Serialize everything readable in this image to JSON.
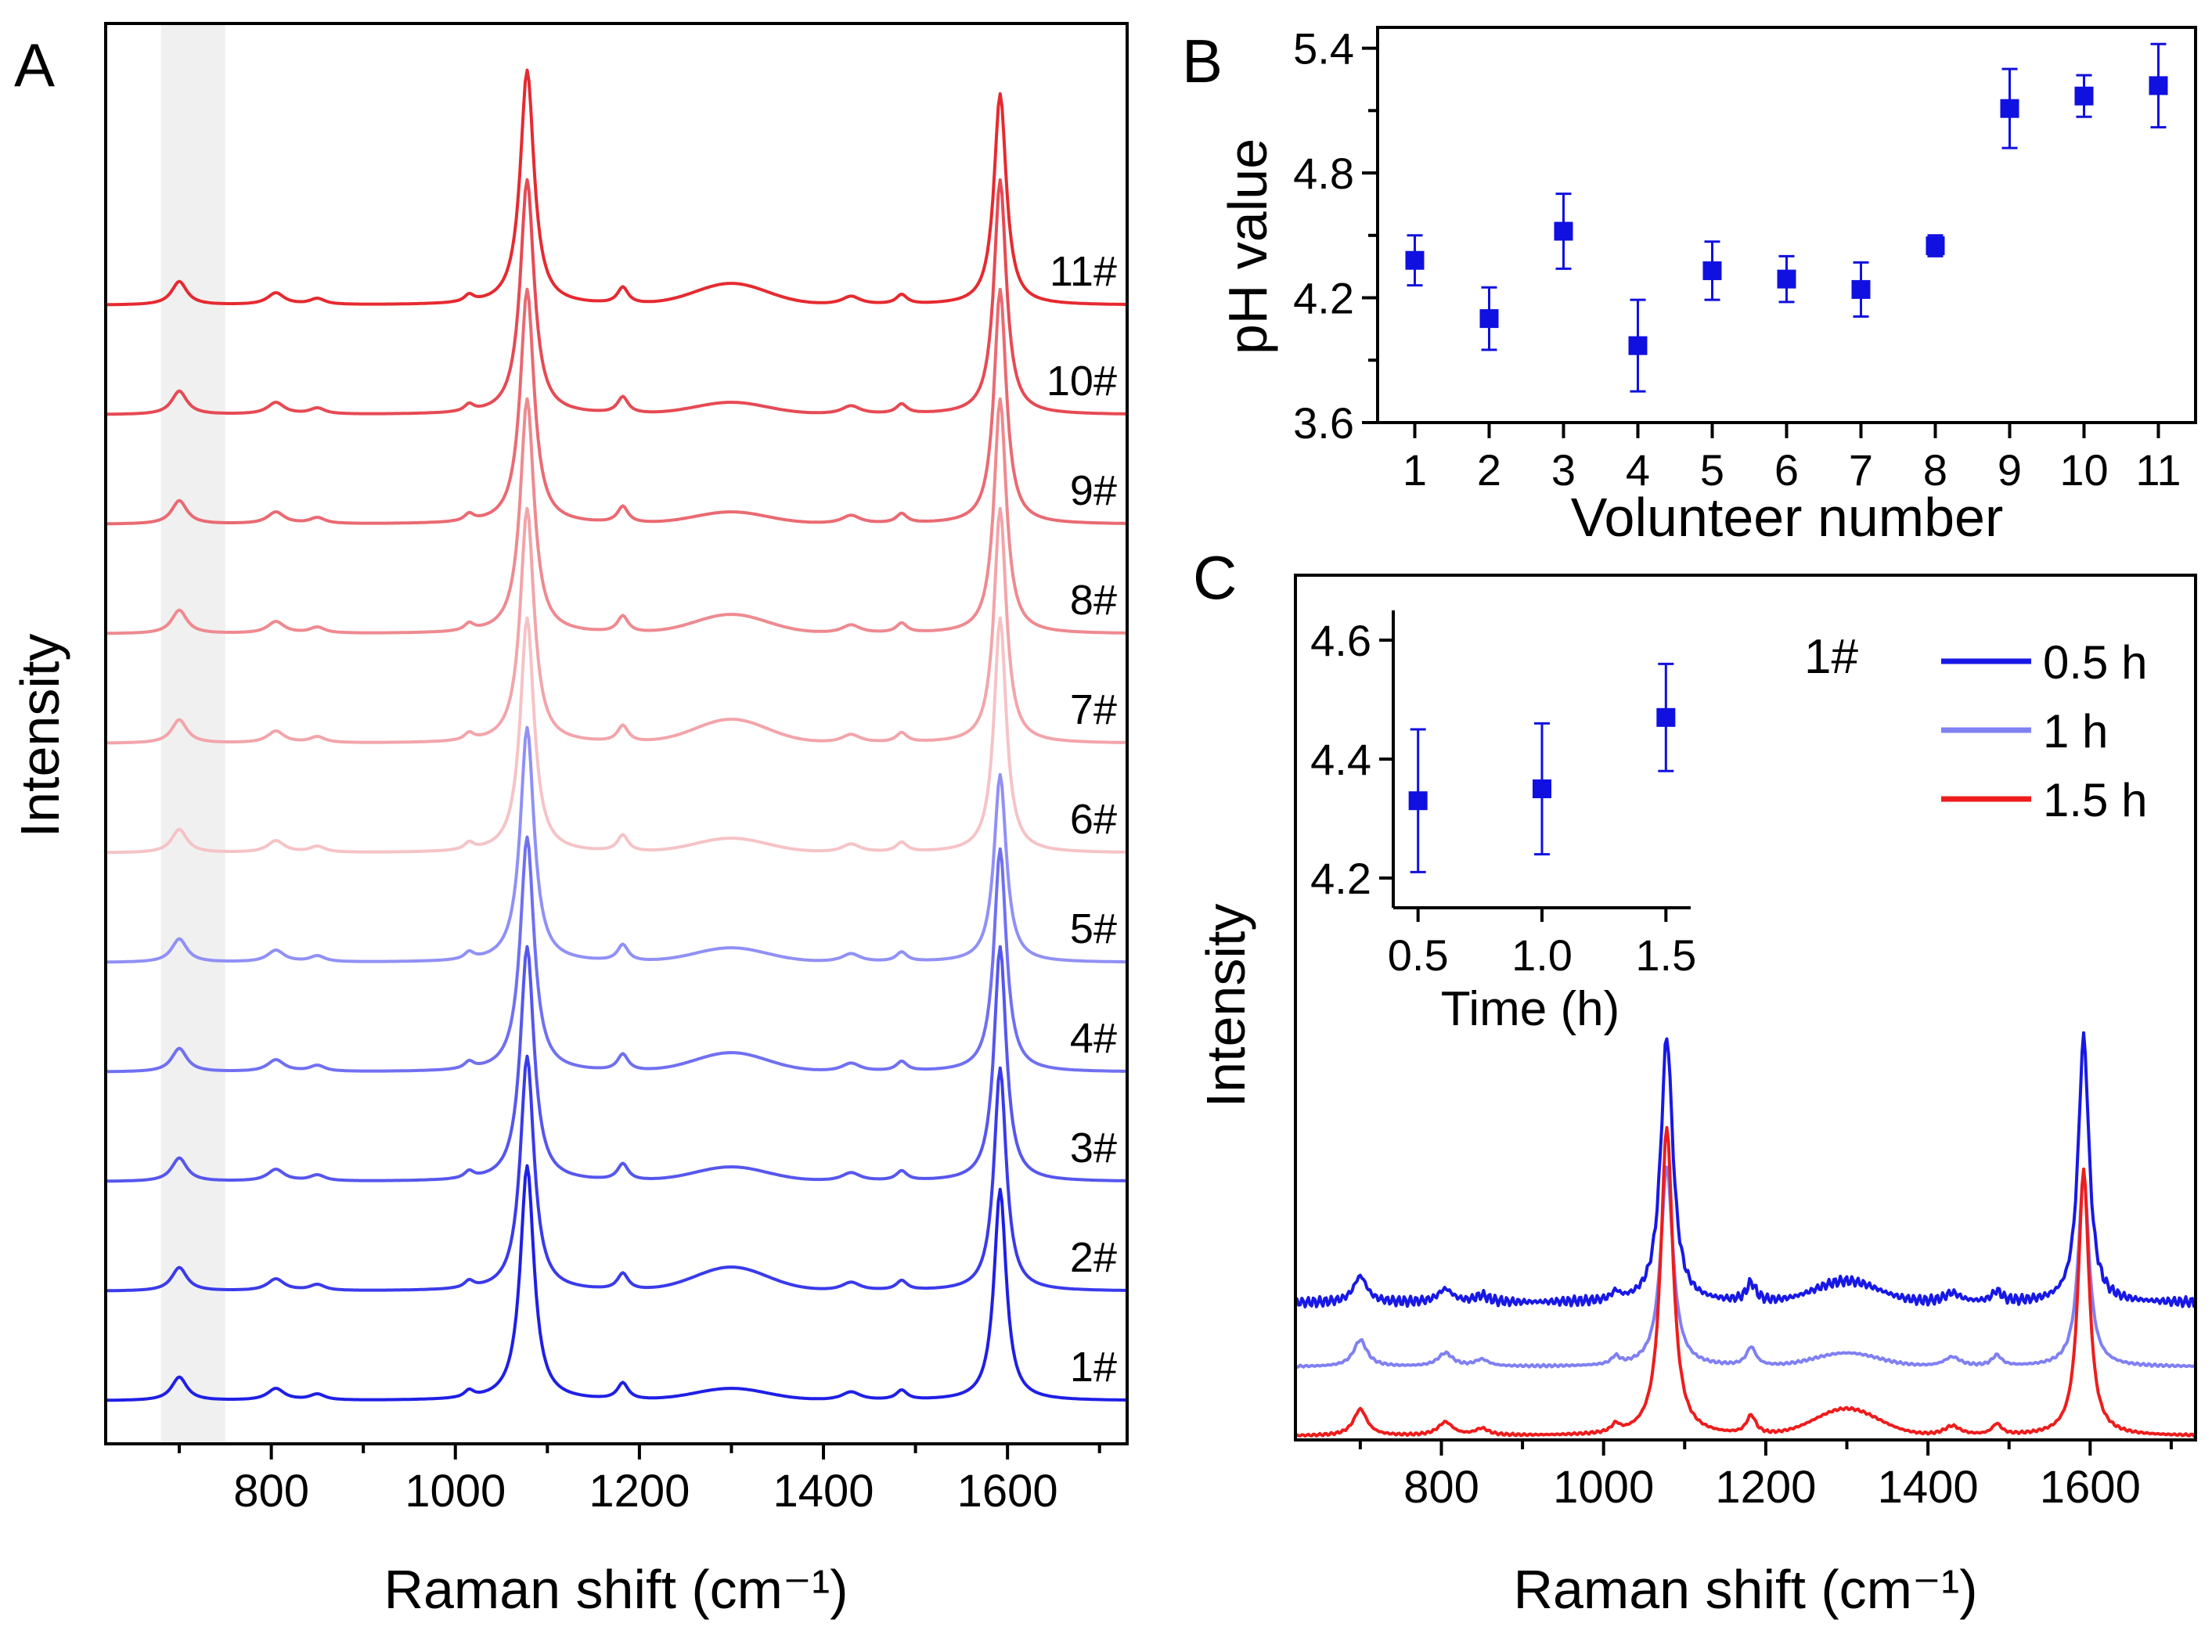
{
  "chart_data": [
    {
      "panel": "A",
      "type": "line",
      "title": "",
      "xlabel": "Raman shift (cm⁻¹)",
      "ylabel": "Intensity",
      "xlim": [
        620,
        1730
      ],
      "xticks": [
        800,
        1000,
        1200,
        1400,
        1600
      ],
      "shaded_band": [
        680,
        750
      ],
      "shaded_color": "#f0f0f0",
      "series": [
        {
          "name": "1#",
          "label": "1#",
          "color": "#1f1fe6",
          "baseline": 0.0,
          "peak_1080": 1.0,
          "peak_1590": 0.9,
          "band_1300": 0.05
        },
        {
          "name": "2#",
          "label": "2#",
          "color": "#3a3aeb",
          "baseline": 0.78,
          "peak_1080": 1.0,
          "peak_1590": 0.95,
          "band_1300": 0.1
        },
        {
          "name": "3#",
          "label": "3#",
          "color": "#5656ee",
          "baseline": 1.56,
          "peak_1080": 1.0,
          "peak_1590": 1.0,
          "band_1300": 0.06
        },
        {
          "name": "4#",
          "label": "4#",
          "color": "#7070f2",
          "baseline": 2.34,
          "peak_1080": 1.0,
          "peak_1590": 0.95,
          "band_1300": 0.08
        },
        {
          "name": "5#",
          "label": "5#",
          "color": "#9090f6",
          "baseline": 3.12,
          "peak_1080": 1.0,
          "peak_1590": 0.8,
          "band_1300": 0.06
        },
        {
          "name": "6#",
          "label": "6#",
          "color": "#f5c3c6",
          "baseline": 3.9,
          "peak_1080": 1.0,
          "peak_1590": 1.0,
          "band_1300": 0.06
        },
        {
          "name": "7#",
          "label": "7#",
          "color": "#f2a5aa",
          "baseline": 4.68,
          "peak_1080": 1.0,
          "peak_1590": 1.0,
          "band_1300": 0.1
        },
        {
          "name": "8#",
          "label": "8#",
          "color": "#ee8a90",
          "baseline": 5.46,
          "peak_1080": 1.0,
          "peak_1590": 1.0,
          "band_1300": 0.08
        },
        {
          "name": "9#",
          "label": "9#",
          "color": "#ea6a72",
          "baseline": 6.24,
          "peak_1080": 1.0,
          "peak_1590": 1.0,
          "band_1300": 0.05
        },
        {
          "name": "10#",
          "label": "10#",
          "color": "#e64a54",
          "baseline": 7.02,
          "peak_1080": 1.0,
          "peak_1590": 1.0,
          "band_1300": 0.05
        },
        {
          "name": "11#",
          "label": "11#",
          "color": "#e62a30",
          "baseline": 7.8,
          "peak_1080": 1.0,
          "peak_1590": 0.9,
          "band_1300": 0.09
        }
      ]
    },
    {
      "panel": "B",
      "type": "scatter",
      "title": "",
      "xlabel": "Volunteer number",
      "ylabel": "pH value",
      "xlim": [
        0.5,
        11.5
      ],
      "ylim": [
        3.6,
        5.5
      ],
      "yticks": [
        3.6,
        4.2,
        4.8,
        5.4
      ],
      "yticklabels": [
        "3.6",
        "4.2",
        "4.8",
        "5.4"
      ],
      "xticks": [
        1,
        2,
        3,
        4,
        5,
        6,
        7,
        8,
        9,
        10,
        11
      ],
      "xticklabels": [
        "1",
        "2",
        "3",
        "4",
        "5",
        "6",
        "7",
        "8",
        "9",
        "10",
        "11"
      ],
      "color": "#1010e0",
      "x": [
        1,
        2,
        3,
        4,
        5,
        6,
        7,
        8,
        9,
        10,
        11
      ],
      "values": [
        4.38,
        4.1,
        4.52,
        3.97,
        4.33,
        4.29,
        4.24,
        4.45,
        5.11,
        5.17,
        5.22
      ],
      "errors": [
        0.12,
        0.15,
        0.18,
        0.22,
        0.14,
        0.11,
        0.13,
        0.05,
        0.19,
        0.1,
        0.2
      ]
    },
    {
      "panel": "C",
      "type": "line",
      "title": "",
      "xlabel": "Raman shift (cm⁻¹)",
      "ylabel": "Intensity",
      "xlim": [
        620,
        1730
      ],
      "xticks": [
        800,
        1000,
        1200,
        1400,
        1600
      ],
      "annotation": "1#",
      "legend_position": "top-right",
      "series": [
        {
          "name": "0.5 h",
          "label": "0.5 h",
          "color": "#1818e6",
          "baseline": 1.0,
          "peak_1080": 1.0,
          "peak_1590": 1.0,
          "band_1300": 0.08,
          "noise": 0.012
        },
        {
          "name": "1 h",
          "label": "1 h",
          "color": "#8080f2",
          "baseline": 0.52,
          "peak_1080": 0.75,
          "peak_1590": 0.72,
          "band_1300": 0.05,
          "noise": 0.003
        },
        {
          "name": "1.5 h",
          "label": "1.5 h",
          "color": "#ee1c1c",
          "baseline": 0.0,
          "peak_1080": 1.16,
          "peak_1590": 1.0,
          "band_1300": 0.1,
          "noise": 0.003
        }
      ],
      "inset": {
        "type": "scatter",
        "xlabel": "Time (h)",
        "ylabel": "",
        "xlim": [
          0.4,
          1.6
        ],
        "ylim": [
          4.15,
          4.65
        ],
        "xticks": [
          0.5,
          1.0,
          1.5
        ],
        "xticklabels": [
          "0.5",
          "1.0",
          "1.5"
        ],
        "yticks": [
          4.2,
          4.4,
          4.6
        ],
        "yticklabels": [
          "4.2",
          "4.4",
          "4.6"
        ],
        "color": "#1010e0",
        "x": [
          0.5,
          1.0,
          1.5
        ],
        "values": [
          4.33,
          4.35,
          4.47
        ],
        "errors": [
          0.12,
          0.11,
          0.09
        ]
      }
    }
  ],
  "panel_labels": {
    "a": "A",
    "b": "B",
    "c": "C"
  }
}
